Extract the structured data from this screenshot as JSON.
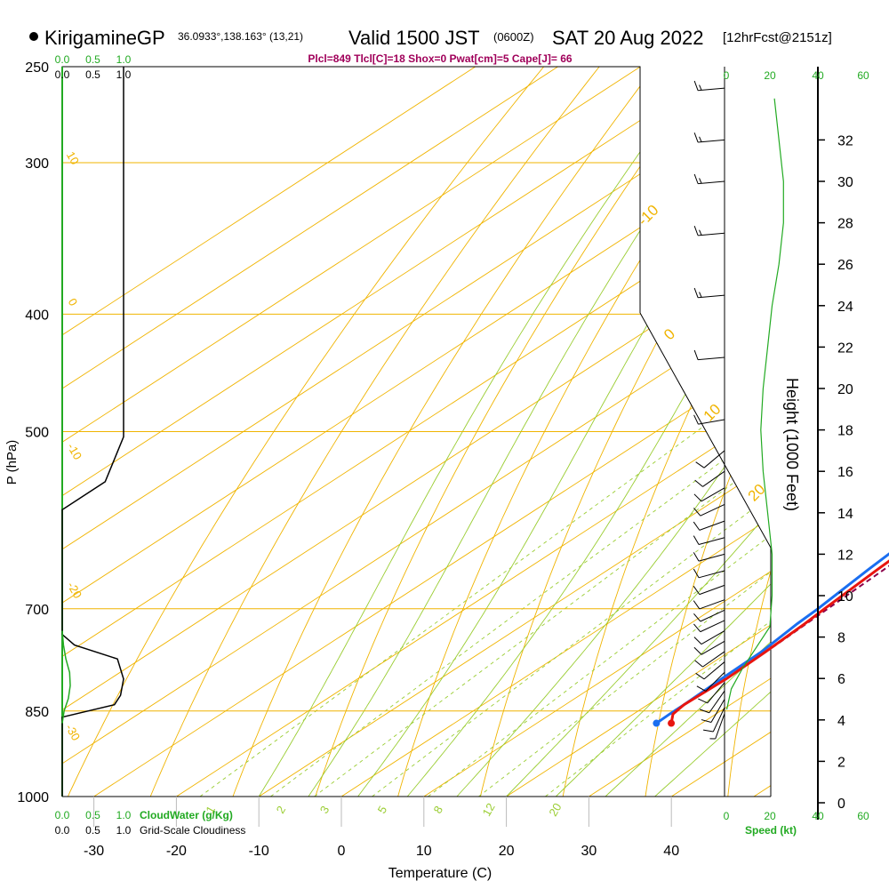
{
  "header": {
    "station": "KirigamineGP",
    "coords": "36.0933°,138.163° (13,21)",
    "valid_main": "Valid 1500 JST",
    "valid_utc": "(0600Z)",
    "valid_date": "SAT 20 Aug 2022",
    "forecast": "[12hrFcst@2151z]",
    "indices": "Plcl=849 Tlcl[C]=18 Shox=0 Pwat[cm]=5 Cape[J]= 66"
  },
  "axes": {
    "y_label": "P (hPa)",
    "x_label": "Temperature (C)",
    "height_label": "Height (1000 Feet)",
    "speed_label": "Speed (kt)",
    "cloudwater_label": "CloudWater (g/Kg)",
    "cloudiness_label": "Grid-Scale Cloudiness"
  },
  "colors": {
    "temperature": "#e8150f",
    "dewpoint": "#1a6ef0",
    "isobar": "#f0b400",
    "dry_adiabat": "#f0b400",
    "moist_adiabat": "#9acd32",
    "mixing_ratio": "#9acd32",
    "parcel": "#8b004b",
    "cloudwater": "#22aa22",
    "wind_speed": "#22aa22",
    "header_indices": "#a0005a"
  },
  "chart_data": {
    "type": "skew-t",
    "title": "KirigamineGP 36.0933°,138.163° (13,21) Valid 1500 JST (0600Z) SAT 20 Aug 2022 [12hrFcst@2151z]",
    "xlabel": "Temperature (C)",
    "ylabel": "P (hPa)",
    "pressure_ticks": [
      250,
      300,
      400,
      500,
      700,
      850,
      1000
    ],
    "temperature_ticks": [
      -30,
      -20,
      -10,
      0,
      10,
      20,
      30,
      40
    ],
    "height_ticks_kft": [
      0,
      2,
      4,
      6,
      8,
      10,
      12,
      14,
      16,
      18,
      20,
      22,
      24,
      26,
      28,
      30,
      32
    ],
    "speed_ticks_kt": [
      0,
      20,
      40,
      60
    ],
    "cloud_ticks": [
      "0.0",
      "0.5",
      "1.0"
    ],
    "dry_adiabat_labels": [
      "-10",
      "0",
      "10",
      "20",
      "30"
    ],
    "isotherm_labels": [
      "10",
      "0",
      "-10",
      "-20",
      "-30"
    ],
    "mixing_ratio_labels": [
      "1",
      "2",
      "3",
      "5",
      "8",
      "12",
      "20"
    ],
    "temperature_profile": [
      {
        "p": 870,
        "t": 26.3
      },
      {
        "p": 855,
        "t": 24.8
      },
      {
        "p": 840,
        "t": 24.4
      },
      {
        "p": 800,
        "t": 24.7
      },
      {
        "p": 760,
        "t": 24.4
      },
      {
        "p": 720,
        "t": 23.9
      },
      {
        "p": 700,
        "t": 23.5
      },
      {
        "p": 650,
        "t": 22.6
      },
      {
        "p": 600,
        "t": 21.8
      },
      {
        "p": 560,
        "t": 20.8
      },
      {
        "p": 540,
        "t": 20.3
      },
      {
        "p": 520,
        "t": 20.2
      },
      {
        "p": 500,
        "t": 20.5
      },
      {
        "p": 450,
        "t": 20.0
      },
      {
        "p": 420,
        "t": 19.4
      },
      {
        "p": 400,
        "t": 18.9
      },
      {
        "p": 380,
        "t": 18.2
      },
      {
        "p": 360,
        "t": 17.4
      },
      {
        "p": 340,
        "t": 16.4
      },
      {
        "p": 320,
        "t": 15.4
      },
      {
        "p": 300,
        "t": 14.5
      },
      {
        "p": 280,
        "t": 13.5
      },
      {
        "p": 260,
        "t": 11.8
      },
      {
        "p": 250,
        "t": 10.9
      }
    ],
    "dewpoint_profile": [
      {
        "p": 870,
        "t": 24.5
      },
      {
        "p": 855,
        "t": 24.4
      },
      {
        "p": 840,
        "t": 24.4
      },
      {
        "p": 800,
        "t": 24.1
      },
      {
        "p": 760,
        "t": 23.9
      },
      {
        "p": 720,
        "t": 23.0
      },
      {
        "p": 700,
        "t": 22.7
      },
      {
        "p": 650,
        "t": 21.5
      },
      {
        "p": 600,
        "t": 20.4
      },
      {
        "p": 560,
        "t": 19.8
      },
      {
        "p": 520,
        "t": 20.1
      },
      {
        "p": 500,
        "t": 19.8
      },
      {
        "p": 450,
        "t": 19.2
      },
      {
        "p": 400,
        "t": 17.9
      },
      {
        "p": 350,
        "t": 15.8
      },
      {
        "p": 320,
        "t": 14.6
      },
      {
        "p": 300,
        "t": 13.3
      },
      {
        "p": 280,
        "t": 11.2
      },
      {
        "p": 260,
        "t": 8.9
      },
      {
        "p": 250,
        "t": 7.4
      }
    ],
    "parcel_profile": [
      {
        "p": 849,
        "t": 24.3
      },
      {
        "p": 800,
        "t": 24.6
      },
      {
        "p": 750,
        "t": 24.4
      },
      {
        "p": 700,
        "t": 23.9
      },
      {
        "p": 650,
        "t": 23.4
      },
      {
        "p": 600,
        "t": 22.8
      },
      {
        "p": 560,
        "t": 22.1
      },
      {
        "p": 520,
        "t": 21.2
      },
      {
        "p": 495,
        "t": 20.6
      }
    ],
    "cloud_water_profile": [
      {
        "p": 870,
        "v": 0.0
      },
      {
        "p": 850,
        "v": 0.03
      },
      {
        "p": 830,
        "v": 0.1
      },
      {
        "p": 810,
        "v": 0.13
      },
      {
        "p": 790,
        "v": 0.12
      },
      {
        "p": 770,
        "v": 0.06
      },
      {
        "p": 750,
        "v": 0.02
      },
      {
        "p": 730,
        "v": 0.0
      }
    ],
    "cloudiness_profile": [
      {
        "p": 1000,
        "v": 0.0
      },
      {
        "p": 860,
        "v": 0.0
      },
      {
        "p": 840,
        "v": 0.85
      },
      {
        "p": 825,
        "v": 0.95
      },
      {
        "p": 800,
        "v": 1.0
      },
      {
        "p": 770,
        "v": 0.9
      },
      {
        "p": 750,
        "v": 0.2
      },
      {
        "p": 735,
        "v": 0.0
      },
      {
        "p": 580,
        "v": 0.0
      },
      {
        "p": 550,
        "v": 0.7
      },
      {
        "p": 505,
        "v": 1.0
      },
      {
        "p": 250,
        "v": 1.0
      }
    ],
    "wind_speed_profile": [
      {
        "h": 4.5,
        "s": 1
      },
      {
        "h": 5.5,
        "s": 3
      },
      {
        "h": 6.5,
        "s": 8
      },
      {
        "h": 7.5,
        "s": 14
      },
      {
        "h": 8.5,
        "s": 20
      },
      {
        "h": 10,
        "s": 21
      },
      {
        "h": 12,
        "s": 21
      },
      {
        "h": 14,
        "s": 19
      },
      {
        "h": 16,
        "s": 17
      },
      {
        "h": 18,
        "s": 16
      },
      {
        "h": 20,
        "s": 17
      },
      {
        "h": 22,
        "s": 19
      },
      {
        "h": 24,
        "s": 21
      },
      {
        "h": 26,
        "s": 24
      },
      {
        "h": 28,
        "s": 26
      },
      {
        "h": 30,
        "s": 26
      },
      {
        "h": 32,
        "s": 24
      },
      {
        "h": 34,
        "s": 22
      }
    ],
    "wind_barbs": [
      {
        "h": 4.3,
        "dir": 200,
        "s": 8
      },
      {
        "h": 4.6,
        "dir": 205,
        "s": 10
      },
      {
        "h": 5.0,
        "dir": 210,
        "s": 10
      },
      {
        "h": 5.4,
        "dir": 215,
        "s": 10
      },
      {
        "h": 5.8,
        "dir": 220,
        "s": 10
      },
      {
        "h": 6.3,
        "dir": 225,
        "s": 10
      },
      {
        "h": 6.8,
        "dir": 230,
        "s": 10
      },
      {
        "h": 7.3,
        "dir": 235,
        "s": 10
      },
      {
        "h": 7.8,
        "dir": 240,
        "s": 10
      },
      {
        "h": 8.3,
        "dir": 240,
        "s": 10
      },
      {
        "h": 8.8,
        "dir": 245,
        "s": 10
      },
      {
        "h": 9.3,
        "dir": 245,
        "s": 10
      },
      {
        "h": 9.8,
        "dir": 250,
        "s": 10
      },
      {
        "h": 10.5,
        "dir": 250,
        "s": 10
      },
      {
        "h": 11.2,
        "dir": 255,
        "s": 10
      },
      {
        "h": 12.0,
        "dir": 255,
        "s": 10
      },
      {
        "h": 12.8,
        "dir": 255,
        "s": 10
      },
      {
        "h": 13.6,
        "dir": 250,
        "s": 10
      },
      {
        "h": 14.4,
        "dir": 245,
        "s": 10
      },
      {
        "h": 15.2,
        "dir": 240,
        "s": 10
      },
      {
        "h": 16.0,
        "dir": 235,
        "s": 10
      },
      {
        "h": 17.0,
        "dir": 230,
        "s": 10
      },
      {
        "h": 18.5,
        "dir": 260,
        "s": 10
      },
      {
        "h": 21.5,
        "dir": 265,
        "s": 10
      },
      {
        "h": 24.5,
        "dir": 265,
        "s": 15
      },
      {
        "h": 27.5,
        "dir": 265,
        "s": 15
      },
      {
        "h": 30.0,
        "dir": 265,
        "s": 15
      },
      {
        "h": 32.0,
        "dir": 265,
        "s": 15
      },
      {
        "h": 34.5,
        "dir": 265,
        "s": 15
      }
    ]
  }
}
